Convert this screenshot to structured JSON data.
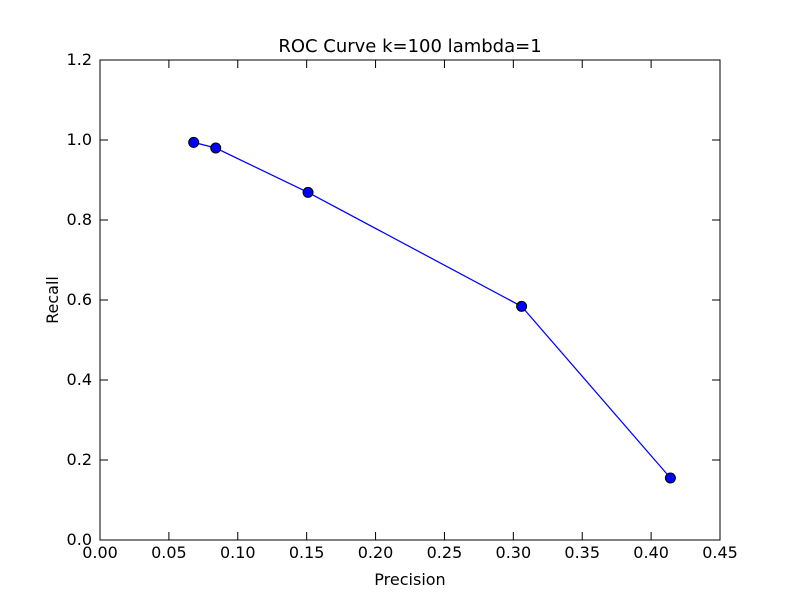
{
  "chart_data": {
    "type": "line",
    "title": "ROC Curve k=100 lambda=1",
    "xlabel": "Precision",
    "ylabel": "Recall",
    "xlim": [
      0.0,
      0.45
    ],
    "ylim": [
      0.0,
      1.2
    ],
    "x_ticks": [
      "0.00",
      "0.05",
      "0.10",
      "0.15",
      "0.20",
      "0.25",
      "0.30",
      "0.35",
      "0.40",
      "0.45"
    ],
    "y_ticks": [
      "0.0",
      "0.2",
      "0.4",
      "0.6",
      "0.8",
      "1.0",
      "1.2"
    ],
    "grid": false,
    "series": [
      {
        "x": [
          0.068,
          0.084,
          0.151,
          0.306,
          0.414
        ],
        "y": [
          0.994,
          0.98,
          0.869,
          0.584,
          0.155
        ],
        "line_color": "#0000ff",
        "marker_color": "#0000ff",
        "marker_edge_color": "#000000"
      }
    ]
  }
}
